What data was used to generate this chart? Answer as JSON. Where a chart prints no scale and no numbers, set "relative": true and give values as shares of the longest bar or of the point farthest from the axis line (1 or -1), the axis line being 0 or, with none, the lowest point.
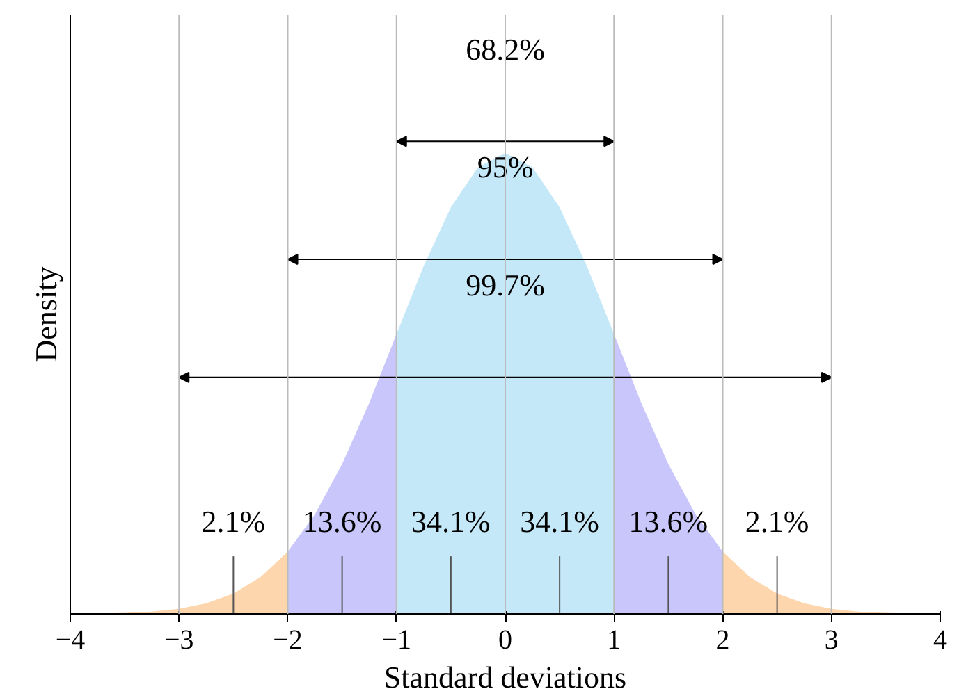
{
  "chart_data": {
    "type": "area",
    "relative": true,
    "xlabel": "Standard deviations",
    "ylabel": "Density",
    "xlim": [
      -4,
      4
    ],
    "xticks": [
      {
        "value": -4,
        "label": "−4"
      },
      {
        "value": -3,
        "label": "−3"
      },
      {
        "value": -2,
        "label": "−2"
      },
      {
        "value": -1,
        "label": "−1"
      },
      0,
      1,
      2,
      3,
      4
    ],
    "series": [
      {
        "color": "#fed6ad",
        "x": [
          -4,
          -3.75,
          -3.5,
          -3.25,
          -3,
          -2.75,
          -2.5,
          -2.25,
          -2
        ],
        "values": [
          0.0003,
          0.0009,
          0.0022,
          0.005,
          0.011,
          0.023,
          0.044,
          0.08,
          0.135
        ]
      },
      {
        "color": "#c8c6fb",
        "x": [
          -2,
          -1.75,
          -1.5,
          -1.25,
          -1
        ],
        "values": [
          0.135,
          0.216,
          0.325,
          0.458,
          0.607
        ]
      },
      {
        "color": "#c4e8f8",
        "x": [
          -1,
          -0.75,
          -0.5,
          -0.25,
          0,
          0.25,
          0.5,
          0.75,
          1
        ],
        "values": [
          0.607,
          0.755,
          0.882,
          0.969,
          1,
          0.969,
          0.882,
          0.755,
          0.607
        ]
      },
      {
        "color": "#c8c6fb",
        "x": [
          1,
          1.25,
          1.5,
          1.75,
          2
        ],
        "values": [
          0.607,
          0.458,
          0.325,
          0.216,
          0.135
        ]
      },
      {
        "color": "#fed6ad",
        "x": [
          2,
          2.25,
          2.5,
          2.75,
          3,
          3.25,
          3.5,
          3.75,
          4
        ],
        "values": [
          0.135,
          0.08,
          0.044,
          0.023,
          0.011,
          0.005,
          0.0022,
          0.0009,
          0.0003
        ]
      }
    ],
    "ref_lines": [
      {
        "axis": "x",
        "value": -3,
        "color": "#bbbbbb"
      },
      {
        "axis": "x",
        "value": -2,
        "color": "#bbbbbb"
      },
      {
        "axis": "x",
        "value": -1,
        "color": "#bbbbbb"
      },
      {
        "axis": "x",
        "value": 0,
        "color": "#bbbbbb"
      },
      {
        "axis": "x",
        "value": 1,
        "color": "#bbbbbb"
      },
      {
        "axis": "x",
        "value": 2,
        "color": "#bbbbbb"
      },
      {
        "axis": "x",
        "value": 3,
        "color": "#bbbbbb"
      }
    ],
    "annotations": [
      "68.2%",
      "95%",
      "99.7%",
      "2.1%",
      "13.6%",
      "34.1%",
      "34.1%",
      "13.6%",
      "2.1%"
    ]
  }
}
